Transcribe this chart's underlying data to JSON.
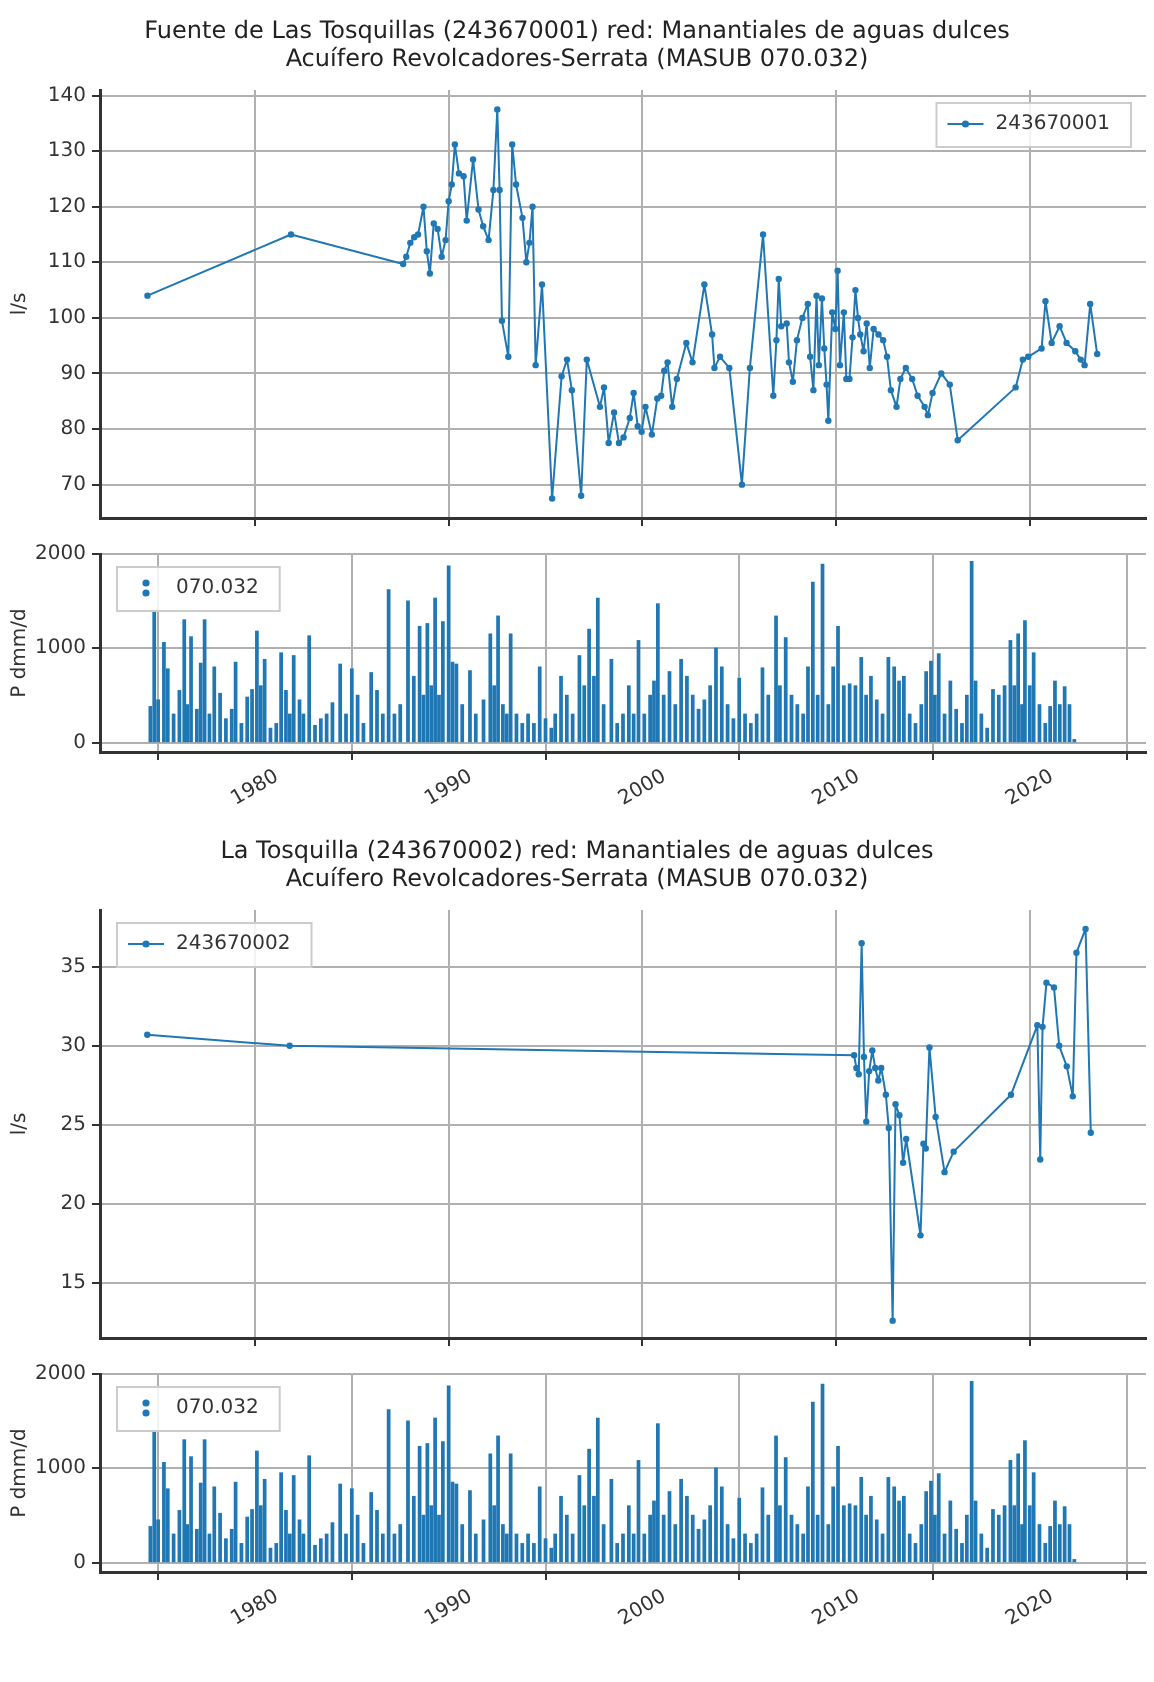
{
  "chart_data": [
    {
      "type": "line",
      "title": "Fuente de Las Tosquillas (243670001) red: Manantiales de aguas dulces",
      "subtitle": "Acuífero Revolcadores-Serrata (MASUB 070.032)",
      "ylabel": "l/s",
      "x": [
        1974.45,
        1981.86,
        1987.65,
        1987.81,
        1988.02,
        1988.22,
        1988.42,
        1988.7,
        1988.87,
        1989.03,
        1989.23,
        1989.43,
        1989.64,
        1989.84,
        1990.0,
        1990.16,
        1990.32,
        1990.53,
        1990.77,
        1990.93,
        1991.26,
        1991.54,
        1991.78,
        1992.06,
        1992.31,
        1992.51,
        1992.63,
        1992.75,
        1993.08,
        1993.28,
        1993.48,
        1993.81,
        1994.01,
        1994.17,
        1994.33,
        1994.49,
        1994.82,
        1995.34,
        1995.83,
        1996.11,
        1996.36,
        1996.84,
        1997.13,
        1997.81,
        1998.02,
        1998.26,
        1998.54,
        1998.79,
        1999.03,
        1999.35,
        1999.55,
        1999.76,
        1999.96,
        2000.16,
        2000.49,
        2000.77,
        2000.97,
        2001.13,
        2001.3,
        2001.54,
        2001.78,
        2002.27,
        2002.59,
        2003.2,
        2003.6,
        2003.72,
        2004.01,
        2004.49,
        2005.14,
        2005.55,
        2006.23,
        2006.76,
        2006.92,
        2007.04,
        2007.17,
        2007.45,
        2007.57,
        2007.77,
        2007.98,
        2008.26,
        2008.54,
        2008.66,
        2008.83,
        2008.99,
        2009.11,
        2009.27,
        2009.39,
        2009.51,
        2009.6,
        2009.8,
        2009.96,
        2010.08,
        2010.2,
        2010.4,
        2010.53,
        2010.69,
        2010.85,
        2011.0,
        2011.13,
        2011.25,
        2011.42,
        2011.58,
        2011.74,
        2011.94,
        2012.19,
        2012.43,
        2012.63,
        2012.83,
        2013.12,
        2013.32,
        2013.6,
        2013.93,
        2014.21,
        2014.57,
        2014.74,
        2014.98,
        2015.43,
        2015.87,
        2016.28,
        2019.27,
        2019.64,
        2019.92,
        2020.61,
        2020.81,
        2021.13,
        2021.54,
        2021.9,
        2022.35,
        2022.63,
        2022.83,
        2023.12,
        2023.48
      ],
      "series": [
        {
          "name": "243670001",
          "color": "#1f77b4",
          "values": [
            104,
            115,
            109.7,
            111,
            113.5,
            114.5,
            115,
            120,
            112,
            108,
            117,
            116,
            111,
            114,
            121,
            124,
            131.2,
            126,
            125.5,
            117.5,
            128.5,
            119.5,
            116.5,
            114,
            123,
            137.5,
            123,
            99.5,
            93,
            131.2,
            124,
            118,
            110,
            113.5,
            120,
            91.5,
            106,
            67.5,
            89.5,
            92.5,
            87,
            68,
            92.5,
            84,
            87.5,
            77.5,
            83,
            77.5,
            78.5,
            82,
            86.5,
            80.5,
            79.5,
            84,
            79,
            85.5,
            86,
            90.5,
            92,
            84,
            89,
            95.5,
            92,
            106,
            97,
            91,
            93,
            91,
            70,
            91,
            115,
            86,
            96,
            107,
            98.5,
            99,
            92,
            88.5,
            96,
            100,
            102.5,
            93,
            87,
            104,
            91.5,
            103.5,
            94.5,
            88,
            81.5,
            101,
            98,
            108.5,
            91.5,
            101,
            89,
            89,
            96.5,
            105,
            100,
            97,
            94,
            99,
            91,
            98,
            97,
            96,
            93,
            87,
            84,
            89,
            91,
            89,
            86,
            84,
            82.5,
            86.5,
            90,
            88,
            78,
            87.5,
            92.5,
            93,
            94.5,
            103,
            95.5,
            98.5,
            95.5,
            94,
            92.5,
            91.5,
            102.5,
            93.5
          ]
        }
      ],
      "xlim": [
        1972,
        2026
      ],
      "xticks": [
        1980,
        1990,
        2000,
        2010,
        2020
      ],
      "ylim": [
        64,
        141
      ],
      "yticks": [
        70,
        80,
        90,
        100,
        110,
        120,
        130,
        140
      ],
      "grid": true,
      "legend": "top right",
      "tick_labels": "y",
      "marker": "circle"
    },
    {
      "type": "bar",
      "ylabel": "P dmm/d",
      "x": [
        1974.6,
        1974.8,
        1975.0,
        1975.3,
        1975.5,
        1975.8,
        1976.1,
        1976.35,
        1976.5,
        1976.7,
        1977.0,
        1977.2,
        1977.4,
        1977.65,
        1977.9,
        1978.2,
        1978.5,
        1978.8,
        1979.0,
        1979.3,
        1979.6,
        1979.85,
        1980.1,
        1980.3,
        1980.5,
        1980.8,
        1981.1,
        1981.35,
        1981.6,
        1981.8,
        1982.0,
        1982.3,
        1982.5,
        1982.8,
        1983.1,
        1983.4,
        1983.7,
        1984.0,
        1984.4,
        1984.7,
        1985.0,
        1985.3,
        1985.6,
        1986.0,
        1986.3,
        1986.6,
        1986.9,
        1987.2,
        1987.5,
        1987.9,
        1988.2,
        1988.5,
        1988.7,
        1988.9,
        1989.1,
        1989.3,
        1989.5,
        1989.7,
        1990.0,
        1990.2,
        1990.4,
        1990.7,
        1991.1,
        1991.4,
        1991.8,
        1992.15,
        1992.35,
        1992.55,
        1992.8,
        1993.0,
        1993.2,
        1993.5,
        1993.8,
        1994.1,
        1994.4,
        1994.7,
        1995.0,
        1995.3,
        1995.5,
        1995.8,
        1996.1,
        1996.4,
        1996.75,
        1997.0,
        1997.25,
        1997.5,
        1997.7,
        1998.0,
        1998.4,
        1998.7,
        1999.0,
        1999.3,
        1999.55,
        1999.8,
        2000.1,
        2000.4,
        2000.6,
        2000.8,
        2001.1,
        2001.4,
        2001.7,
        2002.0,
        2002.3,
        2002.6,
        2002.9,
        2003.2,
        2003.5,
        2003.8,
        2004.1,
        2004.4,
        2004.7,
        2005.0,
        2005.3,
        2005.6,
        2005.9,
        2006.2,
        2006.5,
        2006.9,
        2007.1,
        2007.4,
        2007.7,
        2008.0,
        2008.3,
        2008.55,
        2008.8,
        2009.05,
        2009.3,
        2009.6,
        2009.85,
        2010.1,
        2010.4,
        2010.7,
        2011.0,
        2011.3,
        2011.55,
        2011.8,
        2012.1,
        2012.4,
        2012.7,
        2013.0,
        2013.25,
        2013.5,
        2013.8,
        2014.1,
        2014.4,
        2014.65,
        2014.9,
        2015.1,
        2015.3,
        2015.6,
        2015.9,
        2016.2,
        2016.5,
        2016.75,
        2017.0,
        2017.2,
        2017.5,
        2017.8,
        2018.1,
        2018.4,
        2018.7,
        2019.0,
        2019.2,
        2019.4,
        2019.6,
        2019.75,
        2020.0,
        2020.2,
        2020.5,
        2020.8,
        2021.05,
        2021.3,
        2021.55,
        2021.8,
        2022.05,
        2022.3
      ],
      "series": [
        {
          "name": "070.032",
          "color": "#1f77b4",
          "values": [
            380,
            1380,
            450,
            1060,
            780,
            300,
            550,
            1300,
            400,
            1120,
            350,
            840,
            1300,
            300,
            800,
            520,
            250,
            350,
            850,
            200,
            480,
            560,
            1180,
            600,
            880,
            150,
            200,
            950,
            550,
            300,
            920,
            450,
            300,
            1130,
            180,
            250,
            300,
            420,
            830,
            300,
            780,
            500,
            200,
            740,
            550,
            300,
            1620,
            300,
            400,
            1500,
            700,
            1230,
            500,
            1260,
            600,
            1530,
            500,
            1280,
            1870,
            850,
            830,
            400,
            760,
            300,
            450,
            1150,
            600,
            1340,
            400,
            300,
            1150,
            300,
            200,
            300,
            200,
            800,
            250,
            150,
            300,
            700,
            500,
            300,
            920,
            600,
            1200,
            700,
            1530,
            400,
            880,
            200,
            300,
            600,
            300,
            1080,
            300,
            500,
            650,
            1470,
            500,
            750,
            400,
            880,
            700,
            500,
            350,
            450,
            600,
            1000,
            800,
            400,
            250,
            680,
            300,
            200,
            300,
            790,
            500,
            1340,
            600,
            1110,
            500,
            400,
            300,
            800,
            1700,
            500,
            1890,
            400,
            800,
            1230,
            600,
            620,
            600,
            900,
            500,
            700,
            450,
            300,
            900,
            800,
            650,
            700,
            300,
            200,
            400,
            750,
            860,
            500,
            940,
            300,
            650,
            350,
            200,
            500,
            1920,
            650,
            300,
            150,
            560,
            500,
            600,
            1080,
            600,
            1150,
            400,
            1290,
            600,
            950,
            400,
            200,
            380,
            650,
            400,
            590,
            400,
            30
          ]
        }
      ],
      "xlim": [
        1972,
        2026
      ],
      "xticks": [
        1980,
        1990,
        2000,
        2010,
        2020
      ],
      "ylim": [
        -100,
        2000
      ],
      "yticks": [
        0,
        1000,
        2000
      ],
      "grid": true,
      "legend": "top left"
    },
    {
      "type": "line",
      "title": "La Tosquilla (243670002) red: Manantiales de aguas dulces",
      "subtitle": "Acuífero Revolcadores-Serrata (MASUB 070.032)",
      "ylabel": "l/s",
      "x": [
        1974.44,
        1981.79,
        2010.93,
        2011.05,
        2011.17,
        2011.32,
        2011.44,
        2011.56,
        2011.71,
        2011.87,
        2012.02,
        2012.18,
        2012.33,
        2012.57,
        2012.72,
        2012.92,
        2013.07,
        2013.27,
        2013.46,
        2013.62,
        2014.36,
        2014.51,
        2014.63,
        2014.82,
        2015.14,
        2015.6,
        2016.07,
        2019.03,
        2020.39,
        2020.54,
        2020.66,
        2020.86,
        2021.25,
        2021.52,
        2021.91,
        2022.22,
        2022.41,
        2022.88,
        2023.15
      ],
      "series": [
        {
          "name": "243670002",
          "color": "#1f77b4",
          "values": [
            30.7,
            30.0,
            29.4,
            28.6,
            28.2,
            36.5,
            29.3,
            25.2,
            28.4,
            29.7,
            28.6,
            27.8,
            28.6,
            26.9,
            24.8,
            12.6,
            26.3,
            25.6,
            22.6,
            24.1,
            18.0,
            23.8,
            23.5,
            29.9,
            25.5,
            22.0,
            23.3,
            26.9,
            31.3,
            22.8,
            31.2,
            34.0,
            33.7,
            30.0,
            28.7,
            26.8,
            35.9,
            37.4,
            24.5
          ]
        }
      ],
      "xlim": [
        1972,
        2026
      ],
      "xticks": [
        1980,
        1990,
        2000,
        2010,
        2020
      ],
      "ylim": [
        11.5,
        38.6
      ],
      "yticks": [
        15,
        20,
        25,
        30,
        35
      ],
      "grid": true,
      "legend": "top left",
      "tick_labels": "y",
      "marker": "circle"
    },
    {
      "type": "bar",
      "ylabel": "P dmm/d",
      "x": [
        1974.6,
        1974.8,
        1975.0,
        1975.3,
        1975.5,
        1975.8,
        1976.1,
        1976.35,
        1976.5,
        1976.7,
        1977.0,
        1977.2,
        1977.4,
        1977.65,
        1977.9,
        1978.2,
        1978.5,
        1978.8,
        1979.0,
        1979.3,
        1979.6,
        1979.85,
        1980.1,
        1980.3,
        1980.5,
        1980.8,
        1981.1,
        1981.35,
        1981.6,
        1981.8,
        1982.0,
        1982.3,
        1982.5,
        1982.8,
        1983.1,
        1983.4,
        1983.7,
        1984.0,
        1984.4,
        1984.7,
        1985.0,
        1985.3,
        1985.6,
        1986.0,
        1986.3,
        1986.6,
        1986.9,
        1987.2,
        1987.5,
        1987.9,
        1988.2,
        1988.5,
        1988.7,
        1988.9,
        1989.1,
        1989.3,
        1989.5,
        1989.7,
        1990.0,
        1990.2,
        1990.4,
        1990.7,
        1991.1,
        1991.4,
        1991.8,
        1992.15,
        1992.35,
        1992.55,
        1992.8,
        1993.0,
        1993.2,
        1993.5,
        1993.8,
        1994.1,
        1994.4,
        1994.7,
        1995.0,
        1995.3,
        1995.5,
        1995.8,
        1996.1,
        1996.4,
        1996.75,
        1997.0,
        1997.25,
        1997.5,
        1997.7,
        1998.0,
        1998.4,
        1998.7,
        1999.0,
        1999.3,
        1999.55,
        1999.8,
        2000.1,
        2000.4,
        2000.6,
        2000.8,
        2001.1,
        2001.4,
        2001.7,
        2002.0,
        2002.3,
        2002.6,
        2002.9,
        2003.2,
        2003.5,
        2003.8,
        2004.1,
        2004.4,
        2004.7,
        2005.0,
        2005.3,
        2005.6,
        2005.9,
        2006.2,
        2006.5,
        2006.9,
        2007.1,
        2007.4,
        2007.7,
        2008.0,
        2008.3,
        2008.55,
        2008.8,
        2009.05,
        2009.3,
        2009.6,
        2009.85,
        2010.1,
        2010.4,
        2010.7,
        2011.0,
        2011.3,
        2011.55,
        2011.8,
        2012.1,
        2012.4,
        2012.7,
        2013.0,
        2013.25,
        2013.5,
        2013.8,
        2014.1,
        2014.4,
        2014.65,
        2014.9,
        2015.1,
        2015.3,
        2015.6,
        2015.9,
        2016.2,
        2016.5,
        2016.75,
        2017.0,
        2017.2,
        2017.5,
        2017.8,
        2018.1,
        2018.4,
        2018.7,
        2019.0,
        2019.2,
        2019.4,
        2019.6,
        2019.75,
        2020.0,
        2020.2,
        2020.5,
        2020.8,
        2021.05,
        2021.3,
        2021.55,
        2021.8,
        2022.05,
        2022.3
      ],
      "series": [
        {
          "name": "070.032",
          "color": "#1f77b4",
          "values": [
            380,
            1380,
            450,
            1060,
            780,
            300,
            550,
            1300,
            400,
            1120,
            350,
            840,
            1300,
            300,
            800,
            520,
            250,
            350,
            850,
            200,
            480,
            560,
            1180,
            600,
            880,
            150,
            200,
            950,
            550,
            300,
            920,
            450,
            300,
            1130,
            180,
            250,
            300,
            420,
            830,
            300,
            780,
            500,
            200,
            740,
            550,
            300,
            1620,
            300,
            400,
            1500,
            700,
            1230,
            500,
            1260,
            600,
            1530,
            500,
            1280,
            1870,
            850,
            830,
            400,
            760,
            300,
            450,
            1150,
            600,
            1340,
            400,
            300,
            1150,
            300,
            200,
            300,
            200,
            800,
            250,
            150,
            300,
            700,
            500,
            300,
            920,
            600,
            1200,
            700,
            1530,
            400,
            880,
            200,
            300,
            600,
            300,
            1080,
            300,
            500,
            650,
            1470,
            500,
            750,
            400,
            880,
            700,
            500,
            350,
            450,
            600,
            1000,
            800,
            400,
            250,
            680,
            300,
            200,
            300,
            790,
            500,
            1340,
            600,
            1110,
            500,
            400,
            300,
            800,
            1700,
            500,
            1890,
            400,
            800,
            1230,
            600,
            620,
            600,
            900,
            500,
            700,
            450,
            300,
            900,
            800,
            650,
            700,
            300,
            200,
            400,
            750,
            860,
            500,
            940,
            300,
            650,
            350,
            200,
            500,
            1920,
            650,
            300,
            150,
            560,
            500,
            600,
            1080,
            600,
            1150,
            400,
            1290,
            600,
            950,
            400,
            200,
            380,
            650,
            400,
            590,
            400,
            30
          ]
        }
      ],
      "xlim": [
        1972,
        2026
      ],
      "xticks": [
        1980,
        1990,
        2000,
        2010,
        2020
      ],
      "ylim": [
        -100,
        2000
      ],
      "yticks": [
        0,
        1000,
        2000
      ],
      "grid": true,
      "legend": "top left"
    }
  ]
}
